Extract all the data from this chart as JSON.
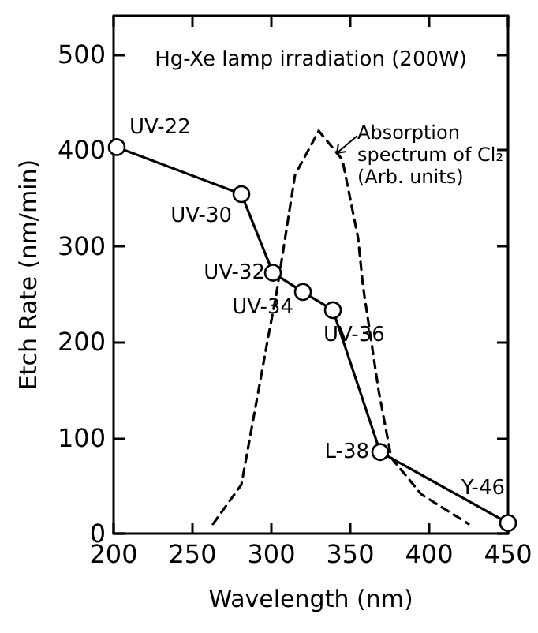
{
  "chart_data": {
    "type": "line",
    "title": "Hg-Xe lamp irradiation (200W)",
    "xlabel": "Wavelength (nm)",
    "ylabel": "Etch Rate (nm/min)",
    "xlim": [
      200,
      450
    ],
    "xticks": [
      200,
      250,
      300,
      350,
      400,
      450
    ],
    "ylim": [
      0,
      540
    ],
    "yticks": [
      0,
      100,
      200,
      300,
      400,
      500
    ],
    "grid": false,
    "series": [
      {
        "color": "#000000",
        "marker": "circle",
        "line_style": "solid",
        "x": [
          202,
          281,
          301,
          320,
          339,
          369,
          450
        ],
        "values": [
          403,
          354,
          272,
          252,
          233,
          85,
          11
        ]
      },
      {
        "name": "Absorption spectrum of Cl₂ (Arb. units)",
        "color": "#000000",
        "marker": "none",
        "line_style": "dashed",
        "x": [
          263,
          281,
          298,
          303,
          315,
          330,
          345,
          355,
          358,
          368,
          376,
          395,
          425
        ],
        "values": [
          10,
          51,
          205,
          248,
          374,
          420,
          390,
          308,
          259,
          149,
          79,
          41,
          10
        ]
      }
    ],
    "annotations": [
      {
        "text": "UV-22",
        "x": 202,
        "y": 403
      },
      {
        "text": "UV-30",
        "x": 281,
        "y": 354
      },
      {
        "text": "UV-32",
        "x": 301,
        "y": 272
      },
      {
        "text": "UV-34",
        "x": 320,
        "y": 252
      },
      {
        "text": "UV-36",
        "x": 339,
        "y": 233
      },
      {
        "text": "L-38",
        "x": 369,
        "y": 85
      },
      {
        "text": "Y-46",
        "x": 450,
        "y": 11
      }
    ]
  }
}
